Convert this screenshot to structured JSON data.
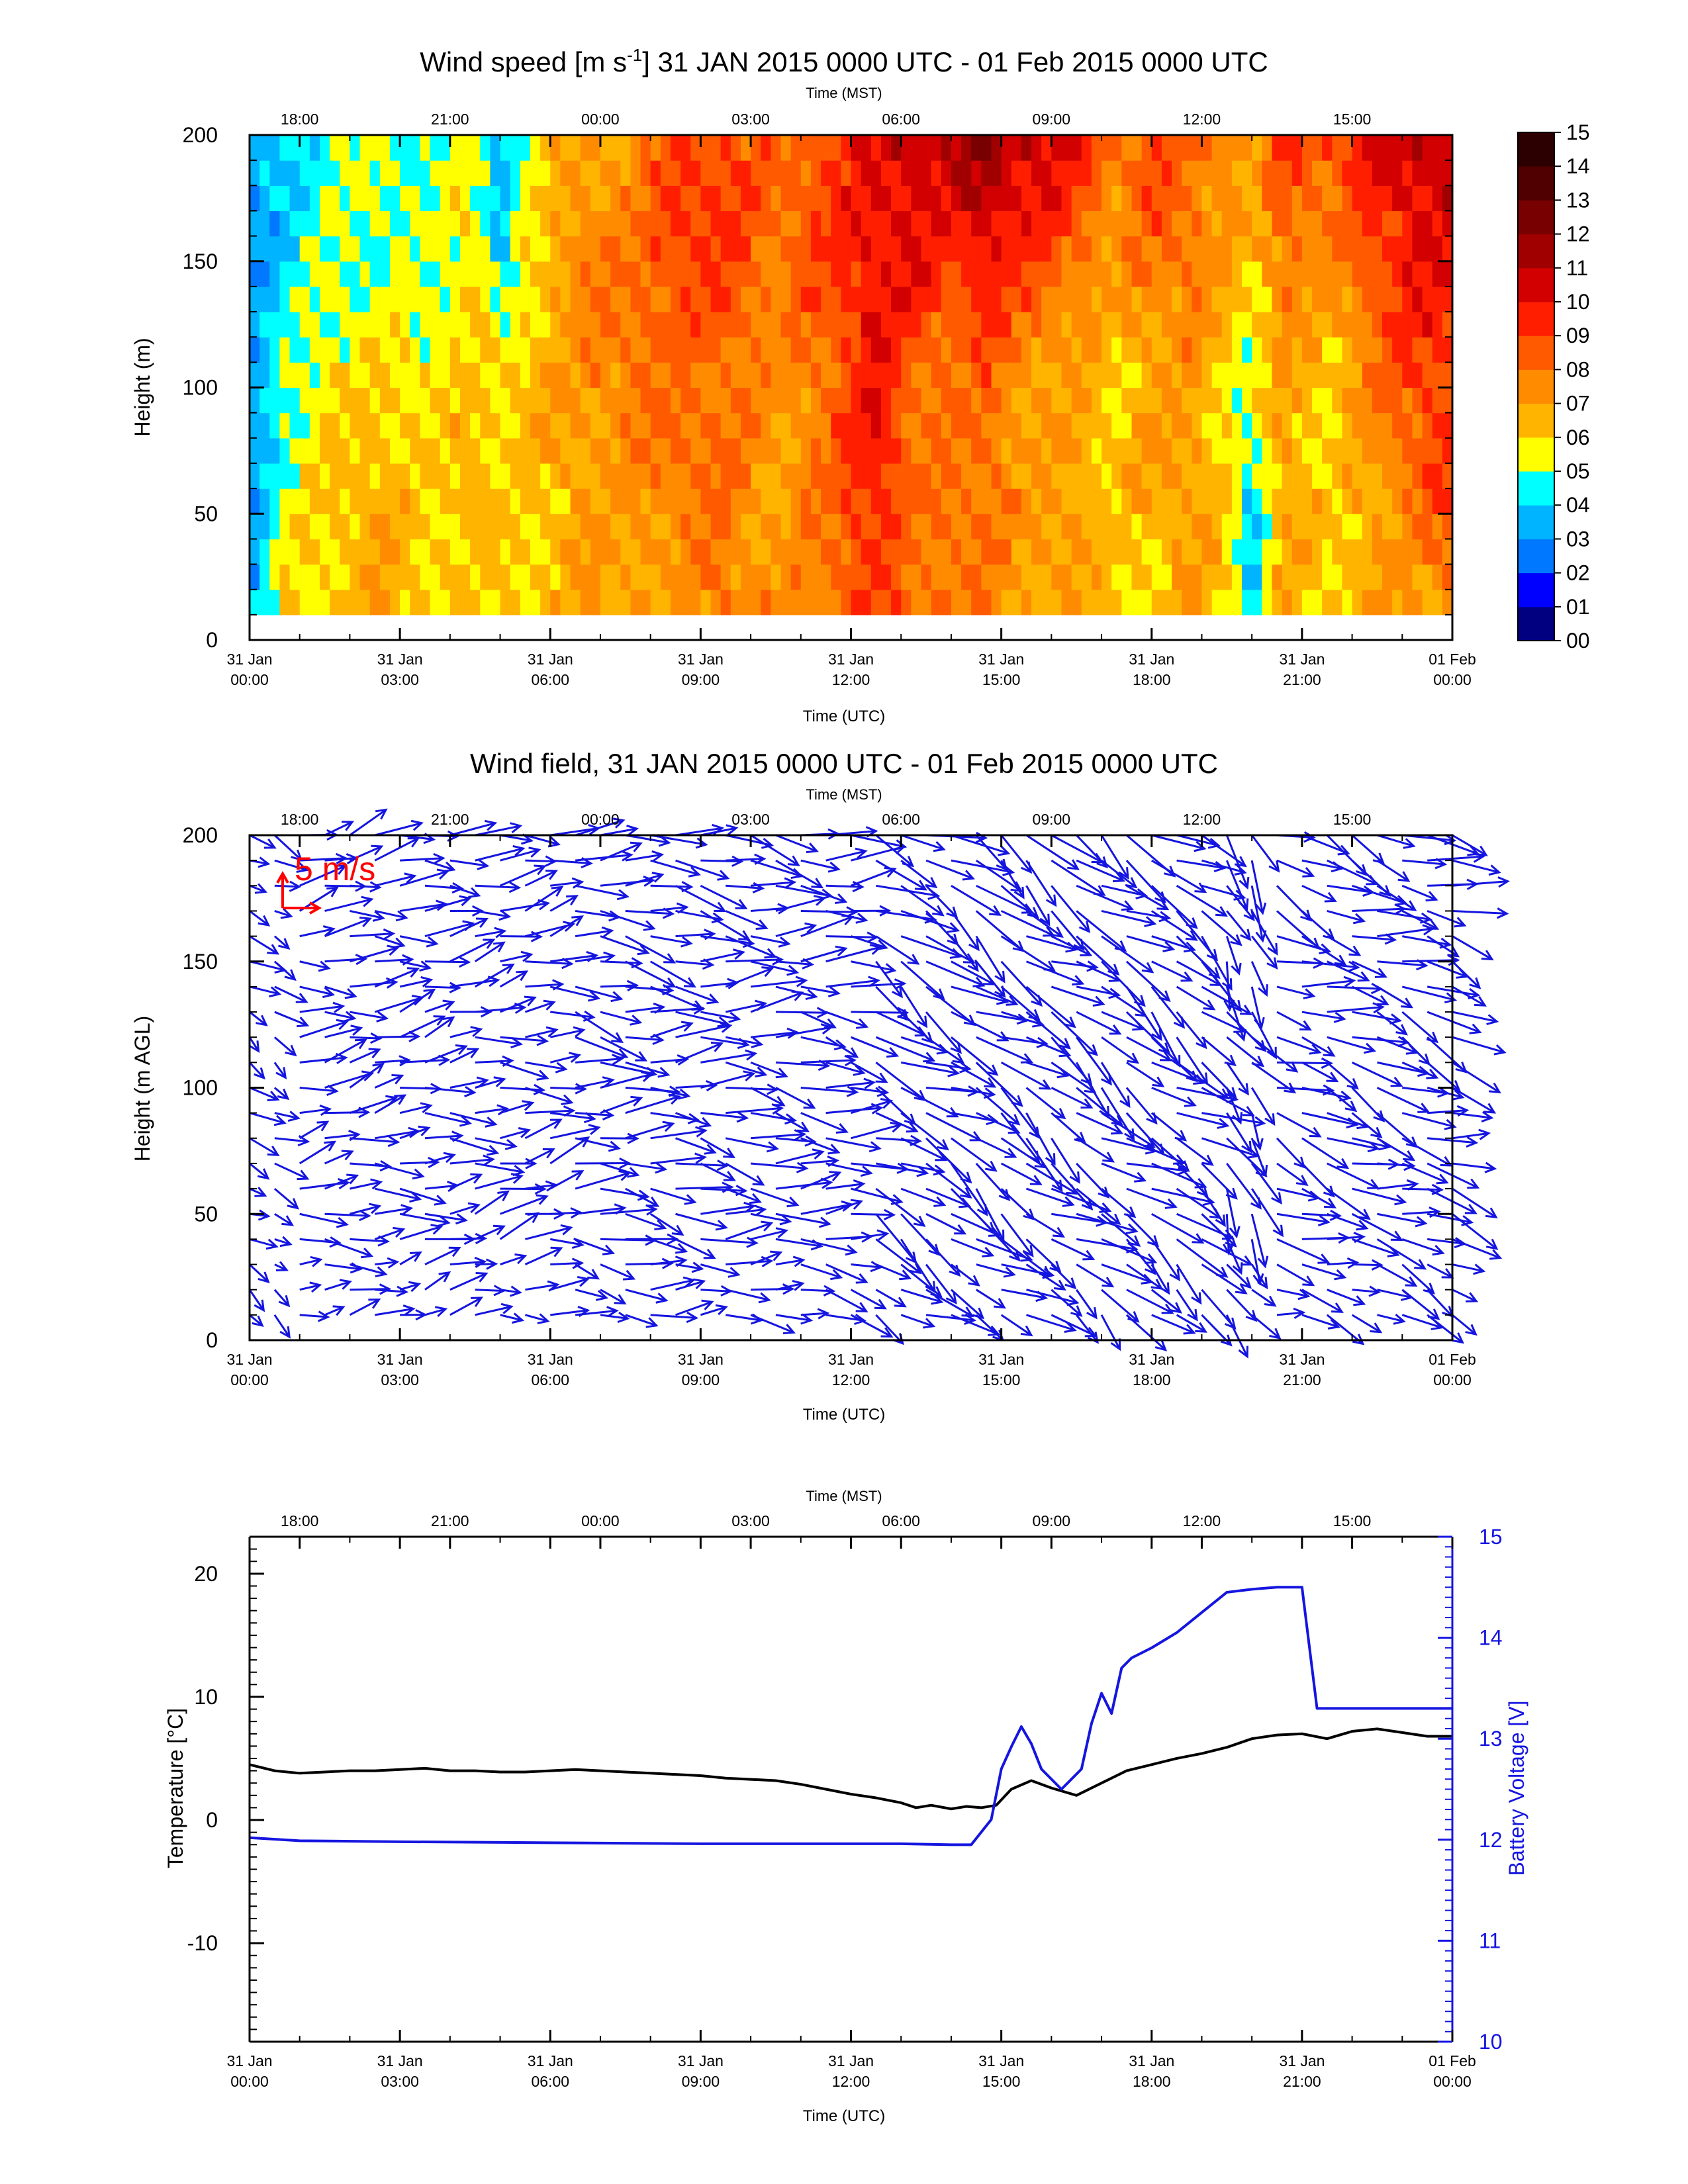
{
  "panel1": {
    "title": "Wind speed [m s-1] 31 JAN 2015 0000 UTC - 01 Feb 2015 0000 UTC",
    "title_parts": {
      "prefix": "Wind speed [m s",
      "sup": "-1",
      "suffix": "] 31 JAN 2015 0000 UTC - 01 Feb 2015 0000 UTC"
    }
  },
  "panel2": {
    "title": "Wind field, 31 JAN 2015 0000 UTC - 01 Feb 2015 0000 UTC",
    "reference_arrow_label": "5 m/s"
  },
  "chart_data": [
    {
      "type": "heatmap",
      "title": "Wind speed [m s-1] 31 JAN 2015 0000 UTC - 01 Feb 2015 0000 UTC",
      "xlabel": "Time (UTC)",
      "x2label": "Time (MST)",
      "ylabel": "Height (m)",
      "xlim": [
        0,
        24
      ],
      "ylim": [
        0,
        200
      ],
      "x_ticks": [
        {
          "value": 0,
          "label": [
            "31 Jan",
            "00:00"
          ]
        },
        {
          "value": 3,
          "label": [
            "31 Jan",
            "03:00"
          ]
        },
        {
          "value": 6,
          "label": [
            "31 Jan",
            "06:00"
          ]
        },
        {
          "value": 9,
          "label": [
            "31 Jan",
            "09:00"
          ]
        },
        {
          "value": 12,
          "label": [
            "31 Jan",
            "12:00"
          ]
        },
        {
          "value": 15,
          "label": [
            "31 Jan",
            "15:00"
          ]
        },
        {
          "value": 18,
          "label": [
            "31 Jan",
            "18:00"
          ]
        },
        {
          "value": 21,
          "label": [
            "31 Jan",
            "21:00"
          ]
        },
        {
          "value": 24,
          "label": [
            "01 Feb",
            "00:00"
          ]
        }
      ],
      "x2_ticks": [
        {
          "value": 1,
          "label": "18:00"
        },
        {
          "value": 4,
          "label": "21:00"
        },
        {
          "value": 7,
          "label": "00:00"
        },
        {
          "value": 10,
          "label": "03:00"
        },
        {
          "value": 13,
          "label": "06:00"
        },
        {
          "value": 16,
          "label": "09:00"
        },
        {
          "value": 19,
          "label": "12:00"
        },
        {
          "value": 22,
          "label": "15:00"
        }
      ],
      "y_ticks": [
        0,
        50,
        100,
        150,
        200
      ],
      "data_height_range": [
        10,
        200
      ],
      "colorbar": {
        "labels": [
          "00",
          "01",
          "02",
          "03",
          "04",
          "05",
          "06",
          "07",
          "08",
          "09",
          "10",
          "11",
          "12",
          "13",
          "14",
          "15"
        ],
        "colors": [
          "#000080",
          "#0000ff",
          "#0078ff",
          "#00b4ff",
          "#00ffff",
          "#ffff00",
          "#ffb400",
          "#ff8c00",
          "#ff5a00",
          "#ff1e00",
          "#d20000",
          "#a00000",
          "#780000",
          "#500000",
          "#2d0000"
        ]
      },
      "column_profiles": [
        {
          "t": 0.0,
          "speeds": [
            3,
            3,
            3,
            3,
            3
          ]
        },
        {
          "t": 0.7,
          "speeds": [
            6,
            5,
            5,
            4,
            4
          ]
        },
        {
          "t": 1.5,
          "speeds": [
            6,
            6,
            6,
            5,
            5
          ]
        },
        {
          "t": 2.5,
          "speeds": [
            7,
            7,
            6,
            5,
            5
          ]
        },
        {
          "t": 3.5,
          "speeds": [
            6,
            6,
            6,
            5,
            5
          ]
        },
        {
          "t": 4.5,
          "speeds": [
            6,
            7,
            6,
            6,
            5
          ]
        },
        {
          "t": 5.0,
          "speeds": [
            6,
            6,
            6,
            4,
            4
          ]
        },
        {
          "t": 5.8,
          "speeds": [
            6,
            6,
            7,
            6,
            6
          ]
        },
        {
          "t": 6.5,
          "speeds": [
            7,
            7,
            7,
            8,
            7
          ]
        },
        {
          "t": 7.5,
          "speeds": [
            7,
            7,
            8,
            8,
            7
          ]
        },
        {
          "t": 8.5,
          "speeds": [
            7,
            8,
            8,
            9,
            9
          ]
        },
        {
          "t": 9.5,
          "speeds": [
            8,
            8,
            8,
            9,
            9
          ]
        },
        {
          "t": 10.5,
          "speeds": [
            7,
            7,
            7,
            8,
            8
          ]
        },
        {
          "t": 11.5,
          "speeds": [
            8,
            8,
            8,
            9,
            9
          ]
        },
        {
          "t": 12.5,
          "speeds": [
            9,
            10,
            10,
            10,
            10
          ]
        },
        {
          "t": 13.3,
          "speeds": [
            8,
            8,
            8,
            10,
            11
          ]
        },
        {
          "t": 14.0,
          "speeds": [
            8,
            8,
            8,
            9,
            11
          ]
        },
        {
          "t": 14.7,
          "speeds": [
            8,
            8,
            8,
            10,
            12
          ]
        },
        {
          "t": 15.5,
          "speeds": [
            7,
            7,
            7,
            9,
            11
          ]
        },
        {
          "t": 16.5,
          "speeds": [
            7,
            7,
            7,
            8,
            10
          ]
        },
        {
          "t": 17.3,
          "speeds": [
            6,
            6,
            6,
            7,
            8
          ]
        },
        {
          "t": 18.0,
          "speeds": [
            6,
            7,
            7,
            8,
            9
          ]
        },
        {
          "t": 18.8,
          "speeds": [
            7,
            7,
            7,
            8,
            8
          ]
        },
        {
          "t": 19.5,
          "speeds": [
            6,
            6,
            6,
            7,
            8
          ]
        },
        {
          "t": 20.0,
          "speeds": [
            4,
            4,
            5,
            6,
            7
          ]
        },
        {
          "t": 20.6,
          "speeds": [
            7,
            7,
            7,
            8,
            9
          ]
        },
        {
          "t": 21.5,
          "speeds": [
            6,
            6,
            6,
            7,
            9
          ]
        },
        {
          "t": 22.5,
          "speeds": [
            7,
            7,
            8,
            9,
            10
          ]
        },
        {
          "t": 23.3,
          "speeds": [
            7,
            8,
            9,
            10,
            11
          ]
        },
        {
          "t": 24.0,
          "speeds": [
            8,
            9,
            9,
            10,
            11
          ]
        }
      ],
      "profile_heights": [
        20,
        60,
        100,
        150,
        200
      ]
    },
    {
      "type": "scatter",
      "subtype": "vector field",
      "title": "Wind field, 31 JAN 2015 0000 UTC - 01 Feb 2015 0000 UTC",
      "xlabel": "Time (UTC)",
      "x2label": "Time (MST)",
      "ylabel": "Height (m AGL)",
      "xlim": [
        0,
        24
      ],
      "ylim": [
        0,
        200
      ],
      "y_ticks": [
        0,
        50,
        100,
        150,
        200
      ],
      "arrow_color": "#1515e0",
      "reference_color": "#ff0000",
      "reference_arrow_label": "5 m/s",
      "heights": [
        10,
        20,
        30,
        40,
        50,
        60,
        70,
        80,
        90,
        100,
        110,
        120,
        130,
        140,
        150,
        160,
        170,
        180,
        190,
        200
      ],
      "time_step_hours": 0.5,
      "regimes": [
        {
          "t_start": 0.0,
          "t_end": 0.8,
          "direction_deg": 300,
          "speed": 4
        },
        {
          "t_start": 0.8,
          "t_end": 6.5,
          "direction_deg": 262,
          "speed": 6
        },
        {
          "t_start": 6.5,
          "t_end": 12.5,
          "direction_deg": 275,
          "speed": 7
        },
        {
          "t_start": 12.5,
          "t_end": 14.5,
          "direction_deg": 300,
          "speed": 8
        },
        {
          "t_start": 14.5,
          "t_end": 19.5,
          "direction_deg": 305,
          "speed": 8
        },
        {
          "t_start": 19.5,
          "t_end": 20.5,
          "direction_deg": 330,
          "speed": 7
        },
        {
          "t_start": 20.5,
          "t_end": 24.0,
          "direction_deg": 290,
          "speed": 7
        }
      ]
    },
    {
      "type": "line",
      "xlabel": "Time (UTC)",
      "x2label": "Time (MST)",
      "ylabel": "Temperature [°C]",
      "y2label": "Battery Voltage [V]",
      "xlim": [
        0,
        24
      ],
      "ylim": [
        -18,
        23
      ],
      "y2lim": [
        10,
        15
      ],
      "y_ticks": [
        -10,
        0,
        10,
        20
      ],
      "y2_ticks": [
        10,
        11,
        12,
        13,
        14,
        15
      ],
      "series": [
        {
          "name": "Temperature",
          "axis": "left",
          "color": "#000000",
          "x": [
            0,
            0.5,
            1,
            1.5,
            2,
            2.5,
            3,
            3.5,
            4,
            4.5,
            5,
            5.5,
            6,
            6.5,
            7,
            7.5,
            8,
            8.5,
            9,
            9.5,
            10,
            10.5,
            11,
            11.5,
            12,
            12.5,
            13,
            13.3,
            13.6,
            14,
            14.3,
            14.6,
            14.9,
            15.2,
            15.6,
            16,
            16.5,
            17,
            17.5,
            18,
            18.5,
            19,
            19.5,
            20,
            20.5,
            21,
            21.5,
            22,
            22.5,
            23,
            23.5,
            24
          ],
          "y": [
            4.5,
            4,
            3.8,
            3.9,
            4.0,
            4.0,
            4.1,
            4.2,
            4.0,
            4.0,
            3.9,
            3.9,
            4.0,
            4.1,
            4.0,
            3.9,
            3.8,
            3.7,
            3.6,
            3.4,
            3.3,
            3.2,
            2.9,
            2.5,
            2.1,
            1.8,
            1.4,
            1.0,
            1.2,
            0.9,
            1.1,
            1.0,
            1.2,
            2.5,
            3.2,
            2.6,
            2.0,
            3.0,
            4.0,
            4.5,
            5.0,
            5.4,
            5.9,
            6.6,
            6.9,
            7.0,
            6.6,
            7.2,
            7.4,
            7.1,
            6.8,
            6.8
          ]
        },
        {
          "name": "Battery Voltage",
          "axis": "right",
          "color": "#1515e0",
          "x": [
            0,
            1,
            3,
            6,
            9,
            11,
            13,
            14,
            14.4,
            14.8,
            15.0,
            15.2,
            15.4,
            15.6,
            15.8,
            16.2,
            16.6,
            16.8,
            17.0,
            17.2,
            17.4,
            17.6,
            18,
            18.5,
            19,
            19.5,
            20,
            20.5,
            21,
            21.3,
            22,
            23,
            24
          ],
          "y": [
            12.02,
            11.99,
            11.98,
            11.97,
            11.96,
            11.96,
            11.96,
            11.95,
            11.95,
            12.2,
            12.7,
            12.92,
            13.12,
            12.95,
            12.7,
            12.5,
            12.7,
            13.15,
            13.45,
            13.25,
            13.7,
            13.8,
            13.9,
            14.05,
            14.25,
            14.45,
            14.48,
            14.5,
            14.5,
            13.3,
            13.3,
            13.3,
            13.3
          ]
        }
      ]
    }
  ],
  "colors": {
    "arrows": "#1515e0",
    "reference_arrow": "#ff0000",
    "voltage": "#1515e0",
    "temperature": "#000000"
  }
}
